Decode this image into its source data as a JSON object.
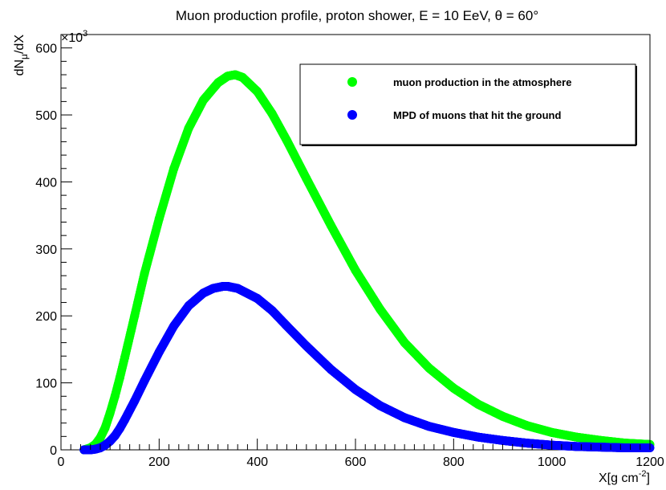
{
  "chart_data": {
    "type": "scatter",
    "title": "Muon production profile, proton shower, E = 10 EeV,  θ = 60°",
    "xlabel": {
      "base": "X[g cm",
      "sup": "-2",
      "end": "]"
    },
    "ylabel": {
      "pre": "dN",
      "sub": "μ",
      "post": "/dX"
    },
    "y_multiplier": {
      "pre": "×10",
      "sup": "3"
    },
    "xlim": [
      0,
      1200
    ],
    "ylim": [
      0,
      620
    ],
    "x_ticks": [
      0,
      200,
      400,
      600,
      800,
      1000,
      1200
    ],
    "y_ticks": [
      0,
      100,
      200,
      300,
      400,
      500,
      600
    ],
    "grid": false,
    "legend_position": "top-right",
    "series": [
      {
        "name": "muon production in the atmosphere",
        "color": "#00ff00",
        "x": [
          47,
          60,
          70,
          80,
          90,
          100,
          110,
          120,
          130,
          150,
          170,
          200,
          230,
          260,
          290,
          320,
          340,
          355,
          370,
          400,
          430,
          460,
          500,
          550,
          600,
          650,
          700,
          750,
          800,
          850,
          900,
          950,
          1000,
          1050,
          1100,
          1150,
          1200
        ],
        "values": [
          0,
          3,
          8,
          18,
          33,
          55,
          80,
          108,
          138,
          200,
          263,
          345,
          420,
          480,
          522,
          548,
          558,
          560,
          556,
          535,
          502,
          462,
          405,
          335,
          268,
          210,
          160,
          122,
          92,
          68,
          50,
          36,
          26,
          19,
          14,
          10,
          8
        ]
      },
      {
        "name": "MPD of muons that hit the ground",
        "color": "#0000ff",
        "x": [
          47,
          60,
          70,
          80,
          90,
          100,
          110,
          120,
          130,
          150,
          170,
          200,
          230,
          260,
          290,
          310,
          330,
          340,
          360,
          400,
          430,
          460,
          500,
          550,
          600,
          650,
          700,
          750,
          800,
          850,
          900,
          950,
          1000,
          1050,
          1100,
          1150,
          1200
        ],
        "values": [
          0,
          0,
          1,
          3,
          7,
          13,
          21,
          32,
          45,
          73,
          103,
          146,
          185,
          215,
          234,
          241,
          244,
          244,
          241,
          226,
          208,
          185,
          155,
          120,
          90,
          66,
          48,
          35,
          26,
          19,
          14,
          10,
          7,
          5,
          4,
          3,
          3
        ]
      }
    ]
  }
}
